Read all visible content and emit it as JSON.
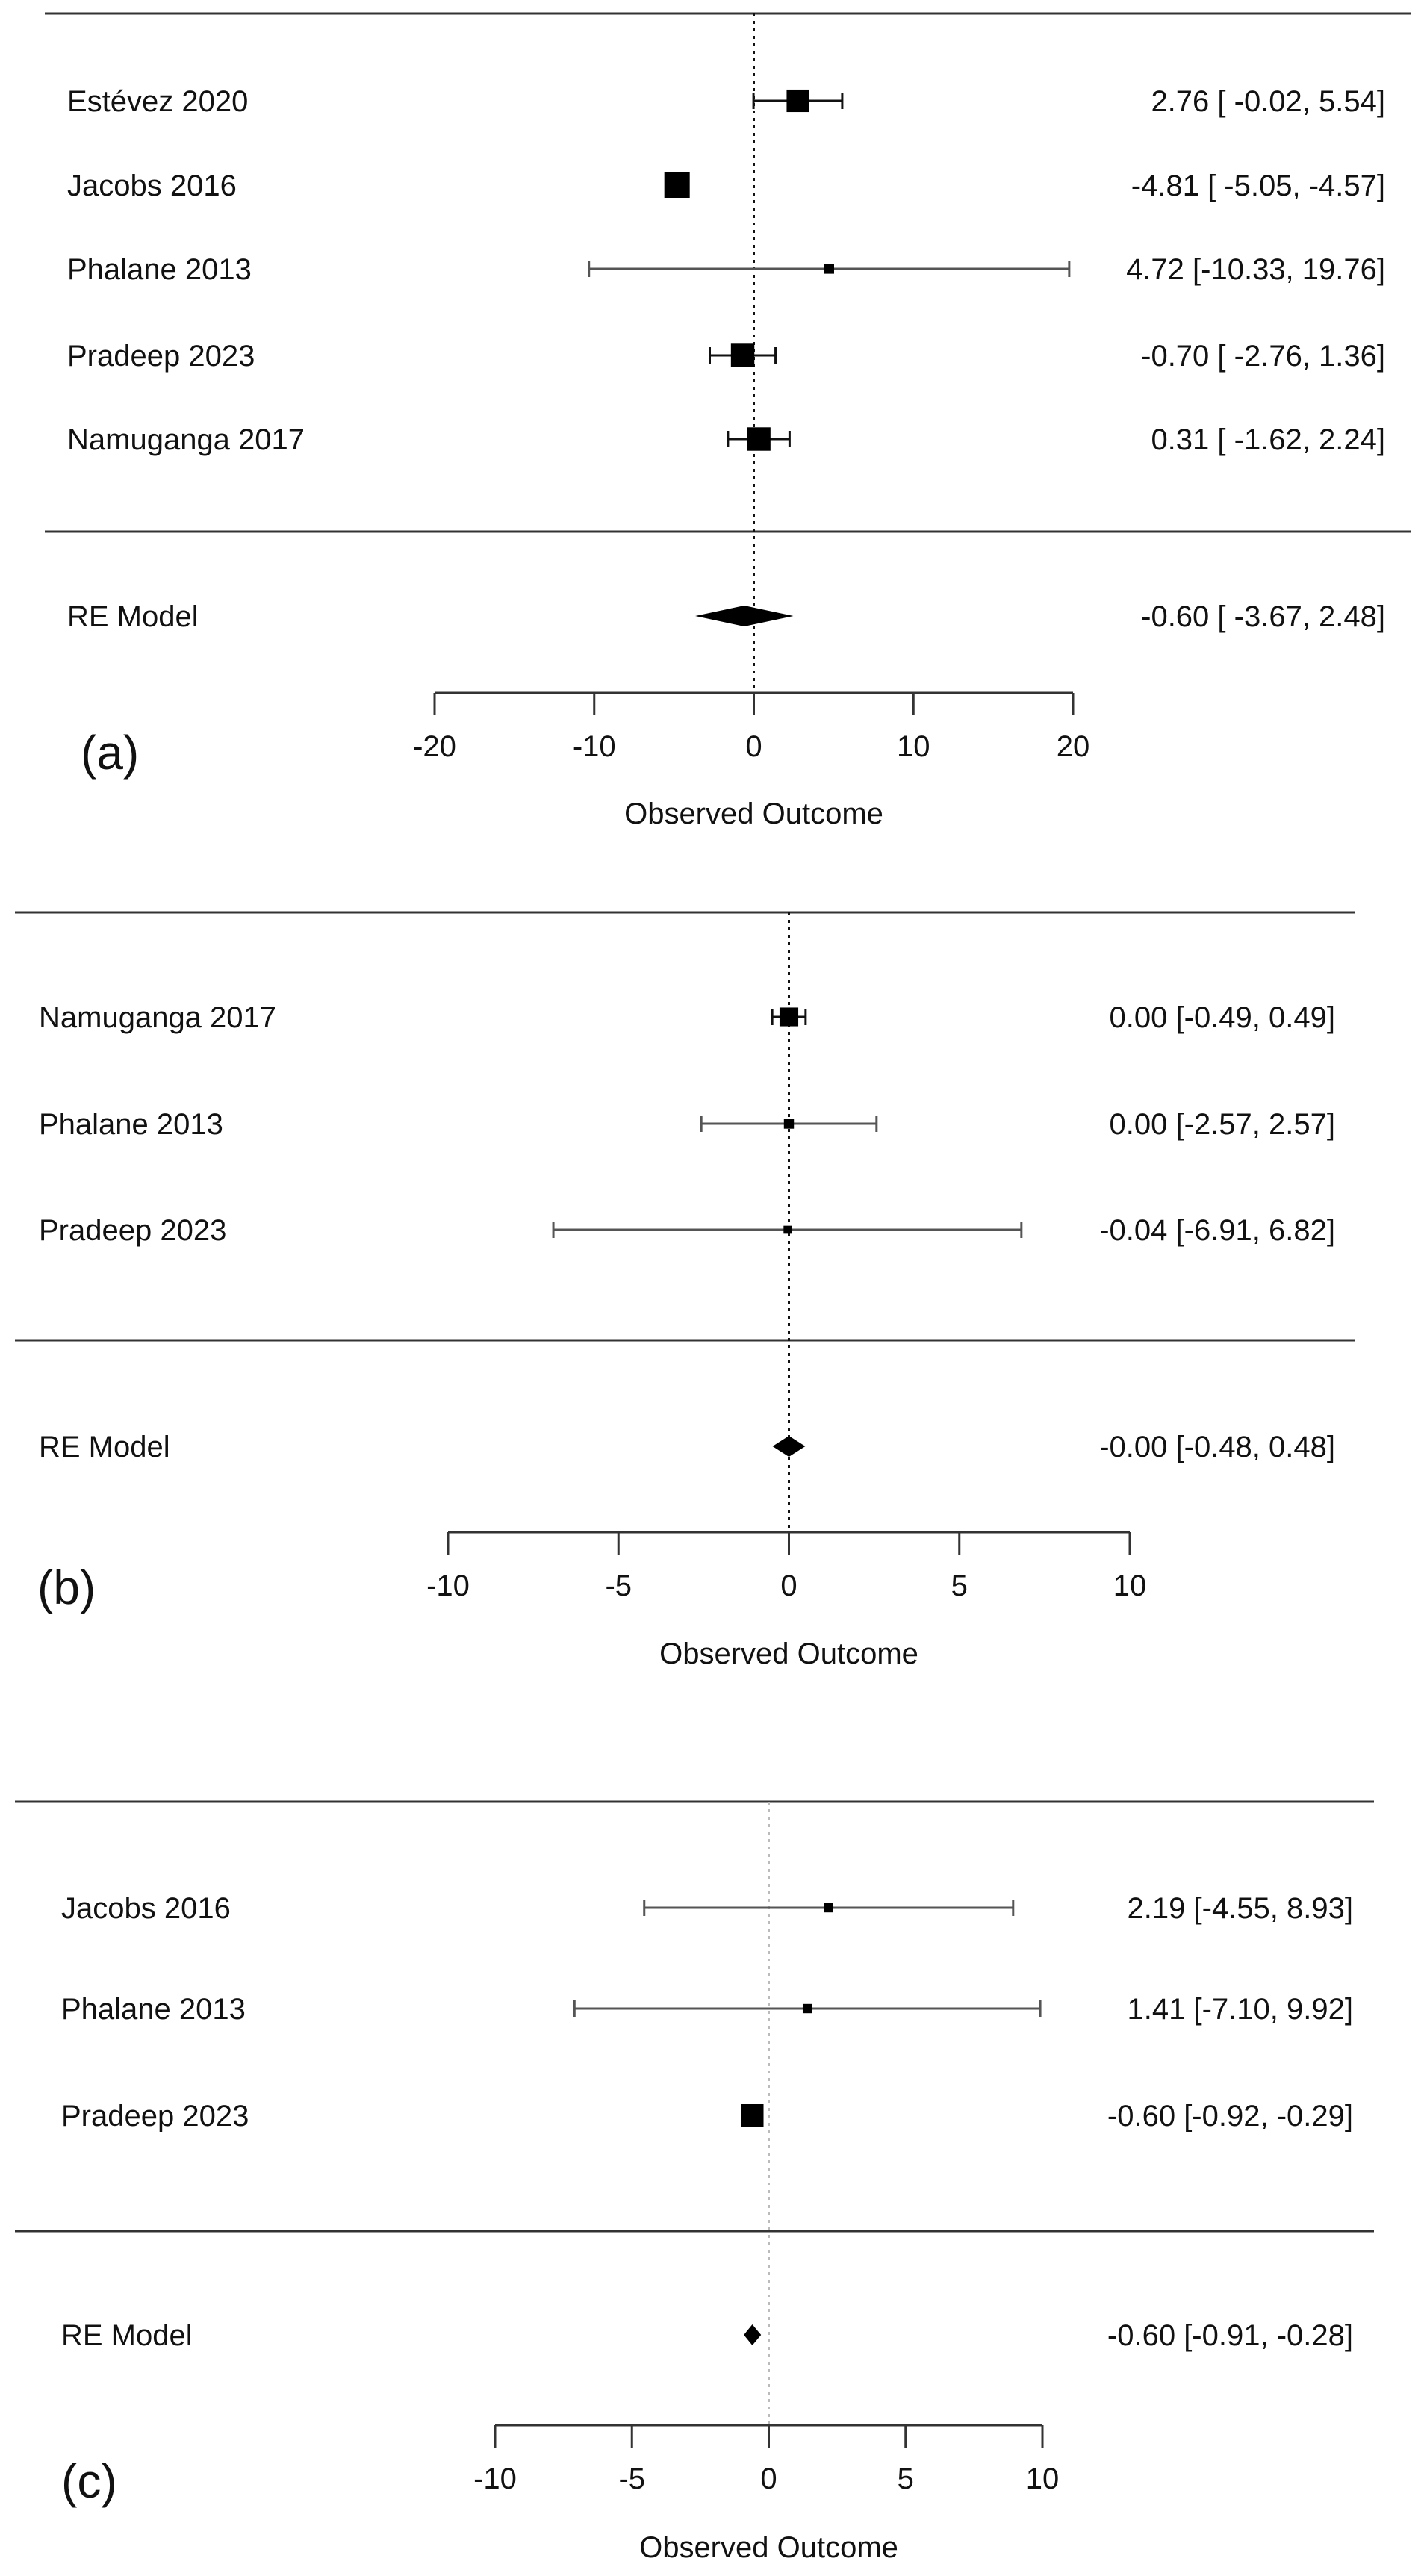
{
  "chart_data": [
    {
      "type": "forest",
      "panel_label": "(a)",
      "xlabel": "Observed Outcome",
      "xlim": [
        -20,
        20
      ],
      "ticks": [
        -20,
        -10,
        0,
        10,
        20
      ],
      "tick_labels": [
        "-20",
        "-10",
        "0",
        "10",
        "20"
      ],
      "reference_line": 0,
      "reference_style": "dotted-black",
      "studies": [
        {
          "name": "Estévez 2020",
          "est": 2.76,
          "lo": -0.02,
          "hi": 5.54,
          "ci_text": "2.76 [ -0.02,  5.54]",
          "weight": 0.85
        },
        {
          "name": "Jacobs 2016",
          "est": -4.81,
          "lo": -5.05,
          "hi": -4.57,
          "ci_text": "-4.81 [ -5.05, -4.57]",
          "weight": 1.0
        },
        {
          "name": "Phalane 2013",
          "est": 4.72,
          "lo": -10.33,
          "hi": 19.76,
          "ci_text": "4.72 [-10.33, 19.76]",
          "weight": 0.2
        },
        {
          "name": "Pradeep 2023",
          "est": -0.7,
          "lo": -2.76,
          "hi": 1.36,
          "ci_text": "-0.70 [ -2.76,  1.36]",
          "weight": 0.9
        },
        {
          "name": "Namuganga 2017",
          "est": 0.31,
          "lo": -1.62,
          "hi": 2.24,
          "ci_text": "0.31 [ -1.62,  2.24]",
          "weight": 0.9
        }
      ],
      "summary": {
        "name": "RE Model",
        "est": -0.6,
        "lo": -3.67,
        "hi": 2.48,
        "ci_text": "-0.60 [ -3.67,  2.48]"
      }
    },
    {
      "type": "forest",
      "panel_label": "(b)",
      "xlabel": "Observed Outcome",
      "xlim": [
        -10,
        10
      ],
      "ticks": [
        -10,
        -5,
        0,
        5,
        10
      ],
      "tick_labels": [
        "-10",
        "-5",
        "0",
        "5",
        "10"
      ],
      "reference_line": 0,
      "reference_style": "dotted-black",
      "studies": [
        {
          "name": "Namuganga 2017",
          "est": 0.0,
          "lo": -0.49,
          "hi": 0.49,
          "ci_text": "0.00 [-0.49, 0.49]",
          "weight": 0.95
        },
        {
          "name": "Phalane 2013",
          "est": 0.0,
          "lo": -2.57,
          "hi": 2.57,
          "ci_text": "0.00 [-2.57, 2.57]",
          "weight": 0.3
        },
        {
          "name": "Pradeep 2023",
          "est": -0.04,
          "lo": -6.91,
          "hi": 6.82,
          "ci_text": "-0.04 [-6.91, 6.82]",
          "weight": 0.15
        }
      ],
      "summary": {
        "name": "RE Model",
        "est": -0.0,
        "lo": -0.48,
        "hi": 0.48,
        "ci_text": "-0.00 [-0.48, 0.48]"
      }
    },
    {
      "type": "forest",
      "panel_label": "(c)",
      "xlabel": "Observed Outcome",
      "xlim": [
        -10,
        10
      ],
      "ticks": [
        -10,
        -5,
        0,
        5,
        10
      ],
      "tick_labels": [
        "-10",
        "-5",
        "0",
        "5",
        "10"
      ],
      "reference_line": 0,
      "reference_style": "dotted-gray",
      "studies": [
        {
          "name": "Jacobs 2016",
          "est": 2.19,
          "lo": -4.55,
          "hi": 8.93,
          "ci_text": "2.19 [-4.55,  8.93]",
          "weight": 0.2
        },
        {
          "name": "Phalane 2013",
          "est": 1.41,
          "lo": -7.1,
          "hi": 9.92,
          "ci_text": "1.41 [-7.10,  9.92]",
          "weight": 0.2
        },
        {
          "name": "Pradeep 2023",
          "est": -0.6,
          "lo": -0.92,
          "hi": -0.29,
          "ci_text": "-0.60 [-0.92, -0.29]",
          "weight": 1.0
        }
      ],
      "summary": {
        "name": "RE Model",
        "est": -0.6,
        "lo": -0.91,
        "hi": -0.28,
        "ci_text": "-0.60 [-0.91, -0.28]"
      }
    }
  ]
}
